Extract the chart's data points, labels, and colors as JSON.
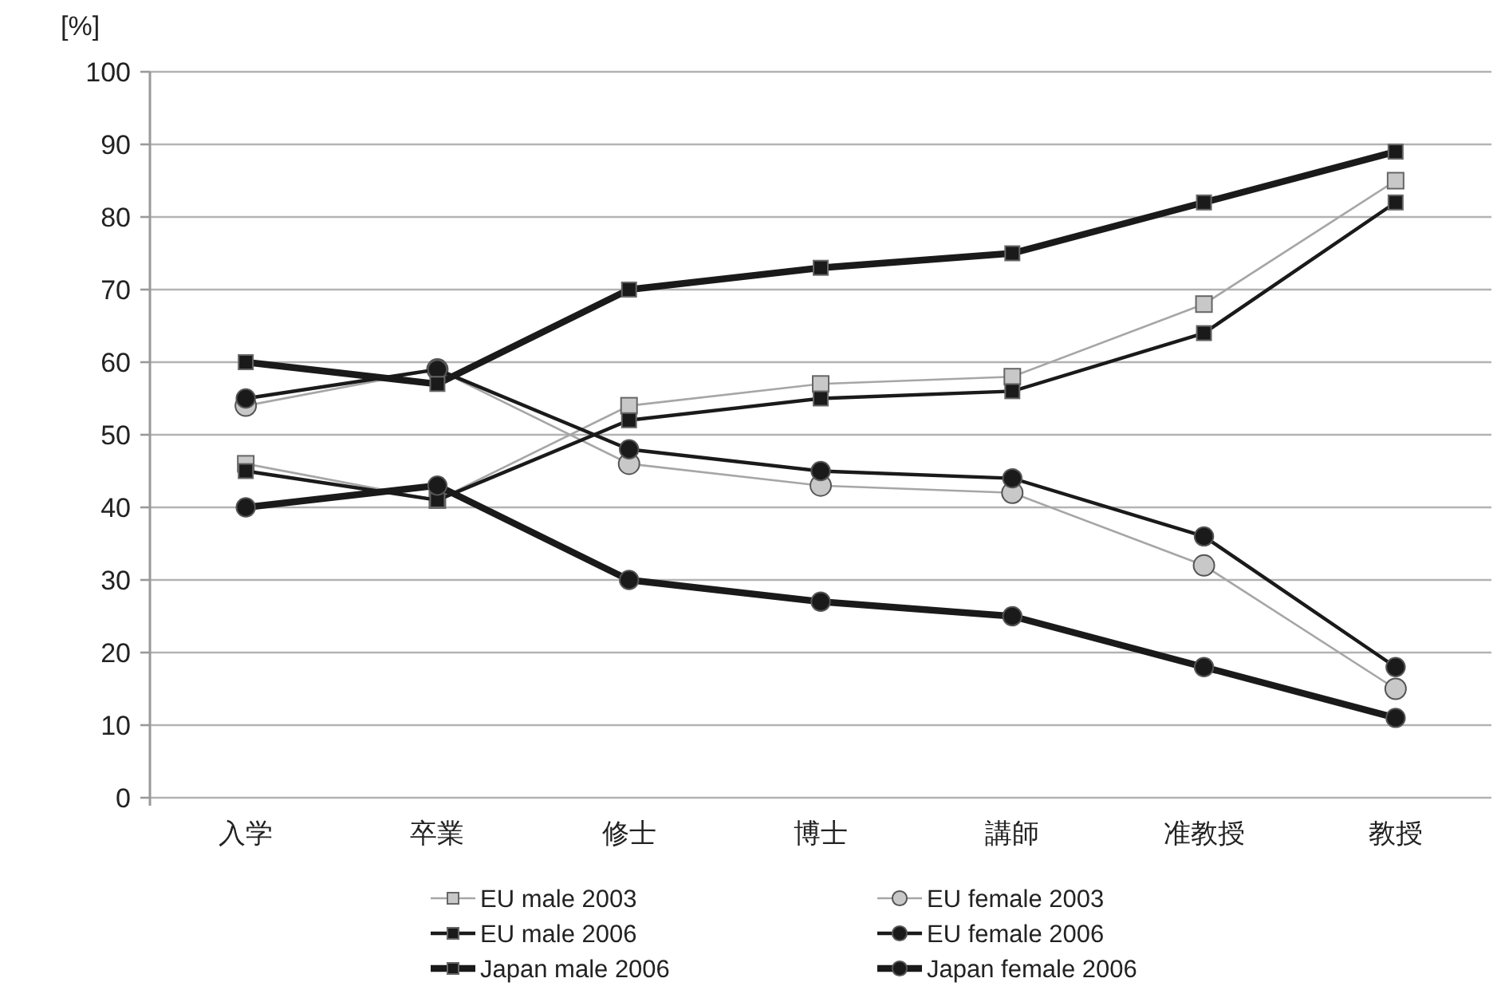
{
  "chart_data": {
    "type": "line",
    "ylabel": "[%]",
    "categories": [
      "入学",
      "卒業",
      "修士",
      "博士",
      "講師",
      "准教授",
      "教授"
    ],
    "ylim": [
      0,
      100
    ],
    "yticks": [
      0,
      10,
      20,
      30,
      40,
      50,
      60,
      70,
      80,
      90,
      100
    ],
    "grid": "y",
    "legend": "bottom",
    "series": [
      {
        "name": "EU male 2003",
        "color": "#a6a6a6",
        "marker": "square",
        "values": [
          46,
          41,
          54,
          57,
          58,
          68,
          85
        ]
      },
      {
        "name": "EU female 2003",
        "color": "#a6a6a6",
        "marker": "circle",
        "values": [
          54,
          59,
          46,
          43,
          42,
          32,
          15
        ]
      },
      {
        "name": "EU male 2006",
        "color": "#1a1a1a",
        "marker": "square",
        "values": [
          45,
          41,
          52,
          55,
          56,
          64,
          82
        ]
      },
      {
        "name": "EU female 2006",
        "color": "#1a1a1a",
        "marker": "circle",
        "values": [
          55,
          59,
          48,
          45,
          44,
          36,
          18
        ]
      },
      {
        "name": "Japan male 2006",
        "color": "#1a1a1a",
        "marker": "square",
        "values": [
          60,
          57,
          70,
          73,
          75,
          82,
          89
        ]
      },
      {
        "name": "Japan female 2006",
        "color": "#1a1a1a",
        "marker": "circle",
        "values": [
          40,
          43,
          30,
          27,
          25,
          18,
          11
        ]
      }
    ]
  }
}
